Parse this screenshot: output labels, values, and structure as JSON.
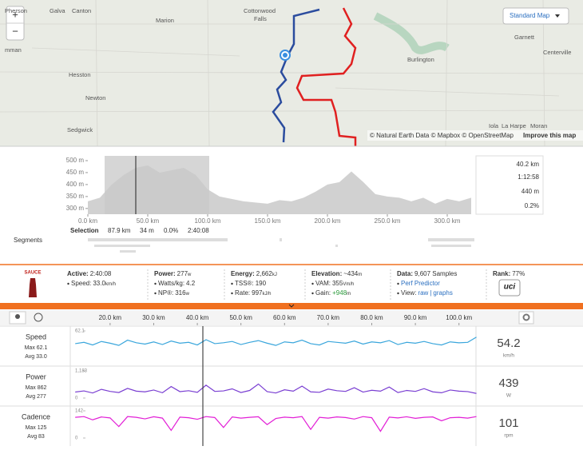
{
  "map": {
    "labels": [
      "Pherson",
      "Galva",
      "Canton",
      "Marion",
      "Cottonwood",
      "Falls",
      "mman",
      "Hesston",
      "Newton",
      "Sedgwick",
      "Garnett",
      "Burlington",
      "Centerville",
      "Iola",
      "La Harpe",
      "Moran"
    ],
    "zoom_in": "+",
    "zoom_out": "−",
    "style_button": "Standard Map",
    "attribution": "© Natural Earth Data © Mapbox © OpenStreetMap",
    "improve": "Improve this map"
  },
  "chart_data": [
    {
      "type": "area",
      "color": "#c9c9c9",
      "x": [
        0,
        10,
        20,
        30,
        40,
        50,
        60,
        70,
        80,
        90,
        100,
        110,
        120,
        130,
        140,
        150,
        160,
        170,
        180,
        190,
        200,
        210,
        220,
        230,
        240,
        250,
        260,
        270,
        280,
        290,
        300,
        310,
        320
      ],
      "values": [
        330,
        345,
        400,
        440,
        470,
        480,
        450,
        460,
        470,
        440,
        380,
        350,
        340,
        330,
        325,
        320,
        335,
        330,
        345,
        370,
        400,
        410,
        455,
        410,
        360,
        350,
        345,
        330,
        345,
        320,
        340,
        330,
        345
      ],
      "xlim": [
        0,
        322
      ],
      "ylim": [
        276,
        520
      ],
      "xticks": [
        {
          "value": 0,
          "label": "0.0 km"
        },
        {
          "value": 50,
          "label": "50.0 km"
        },
        {
          "value": 100,
          "label": "100.0 km"
        },
        {
          "value": 150,
          "label": "150.0 km"
        },
        {
          "value": 200,
          "label": "200.0 km"
        },
        {
          "value": 250,
          "label": "250.0 km"
        },
        {
          "value": 300,
          "label": "300.0 km"
        }
      ],
      "yticks": [
        {
          "value": 500,
          "label": "500 m"
        },
        {
          "value": 450,
          "label": "450 m"
        },
        {
          "value": 400,
          "label": "400 m"
        },
        {
          "value": 350,
          "label": "350 m"
        },
        {
          "value": 300,
          "label": "300 m"
        }
      ],
      "readout": [
        "40.2 km",
        "1:12:58",
        "440 m",
        "0.2%"
      ],
      "selection": [
        "Selection",
        "87.9 km",
        "34 m",
        "0.0%",
        "2:40:08"
      ],
      "segments_label": "Segments"
    },
    {
      "type": "line",
      "color": "#3aa6dc",
      "title": "Speed",
      "max_label": "Max 62.1",
      "avg_label": "Avg 33.0",
      "current": "54.2",
      "unit": "km/h",
      "x": [
        12,
        14,
        16,
        18,
        20,
        22,
        24,
        26,
        28,
        30,
        32,
        34,
        36,
        38,
        40,
        42,
        44,
        46,
        48,
        50,
        52,
        54,
        56,
        58,
        60,
        62,
        64,
        66,
        68,
        70,
        72,
        74,
        76,
        78,
        80,
        82,
        84,
        86,
        88,
        90,
        92,
        94,
        96,
        98,
        100,
        102,
        104
      ],
      "values": [
        33,
        36,
        30,
        38,
        34,
        29,
        41,
        35,
        32,
        37,
        31,
        39,
        34,
        36,
        30,
        42,
        33,
        35,
        38,
        31,
        36,
        40,
        34,
        29,
        37,
        35,
        41,
        33,
        30,
        38,
        36,
        34,
        39,
        32,
        37,
        35,
        40,
        31,
        36,
        34,
        38,
        33,
        30,
        37,
        35,
        36,
        48
      ],
      "xlim": [
        11.6,
        103.9
      ],
      "ylim": [
        0,
        62.1
      ],
      "yticks": [
        62.1
      ],
      "xticks": [
        {
          "value": 20,
          "label": "20.0 km"
        },
        {
          "value": 30,
          "label": "30.0 km"
        },
        {
          "value": 40,
          "label": "40.0 km"
        },
        {
          "value": 50,
          "label": "50.0 km"
        },
        {
          "value": 60,
          "label": "60.0 km"
        },
        {
          "value": 70,
          "label": "70.0 km"
        },
        {
          "value": 80,
          "label": "80.0 km"
        },
        {
          "value": 90,
          "label": "90.0 km"
        },
        {
          "value": 100,
          "label": "100.0 km"
        }
      ]
    },
    {
      "type": "line",
      "color": "#7a3fd2",
      "title": "Power",
      "max_label": "Max 862",
      "avg_label": "Avg 277",
      "current": "439",
      "unit": "W",
      "x": [
        12,
        14,
        16,
        18,
        20,
        22,
        24,
        26,
        28,
        30,
        32,
        34,
        36,
        38,
        40,
        42,
        44,
        46,
        48,
        50,
        52,
        54,
        56,
        58,
        60,
        62,
        64,
        66,
        68,
        70,
        72,
        74,
        76,
        78,
        80,
        82,
        84,
        86,
        88,
        90,
        92,
        94,
        96,
        98,
        100,
        102,
        104
      ],
      "values": [
        260,
        310,
        220,
        380,
        290,
        240,
        420,
        300,
        270,
        350,
        230,
        500,
        280,
        320,
        250,
        560,
        290,
        310,
        400,
        240,
        330,
        610,
        280,
        220,
        360,
        300,
        520,
        270,
        250,
        390,
        320,
        290,
        450,
        260,
        340,
        300,
        480,
        240,
        330,
        290,
        410,
        270,
        230,
        350,
        300,
        280,
        200
      ],
      "xlim": [
        11.6,
        103.9
      ],
      "ylim": [
        0,
        1183
      ],
      "yticks": [
        {
          "value": 1183,
          "label": "1,183"
        },
        0
      ]
    },
    {
      "type": "line",
      "color": "#e21fd6",
      "title": "Cadence",
      "max_label": "Max 125",
      "avg_label": "Avg 83",
      "current": "101",
      "unit": "rpm",
      "x": [
        12,
        14,
        16,
        18,
        20,
        22,
        24,
        26,
        28,
        30,
        32,
        34,
        36,
        38,
        40,
        42,
        44,
        46,
        48,
        50,
        52,
        54,
        56,
        58,
        60,
        62,
        64,
        66,
        68,
        70,
        72,
        74,
        76,
        78,
        80,
        82,
        84,
        86,
        88,
        90,
        92,
        94,
        96,
        98,
        100,
        102,
        104
      ],
      "values": [
        108,
        112,
        95,
        110,
        105,
        60,
        112,
        108,
        100,
        111,
        104,
        40,
        109,
        106,
        98,
        112,
        107,
        55,
        110,
        104,
        108,
        111,
        70,
        102,
        109,
        106,
        112,
        45,
        108,
        104,
        110,
        107,
        99,
        112,
        106,
        35,
        109,
        105,
        111,
        103,
        108,
        110,
        90,
        106,
        108,
        104,
        112
      ],
      "xlim": [
        11.6,
        103.9
      ],
      "ylim": [
        0,
        142
      ],
      "yticks": [
        142,
        0
      ]
    }
  ],
  "stats": {
    "logo": "SAUCE",
    "groups": [
      {
        "title": "Active:",
        "value": "2:40:08",
        "items": [
          {
            "label": "Speed:",
            "value": "33.0",
            "unit": "km/h"
          }
        ]
      },
      {
        "title": "Power:",
        "value": "277",
        "unit": "w",
        "items": [
          {
            "label": "Watts/kg:",
            "value": "4.2"
          },
          {
            "label": "NP®:",
            "value": "316",
            "unit": "w"
          }
        ]
      },
      {
        "title": "Energy:",
        "value": "2,662",
        "unit": "kJ",
        "items": [
          {
            "label": "TSS®:",
            "value": "190"
          },
          {
            "label": "Rate:",
            "value": "997",
            "unit": "kJ/h"
          }
        ]
      },
      {
        "title": "Elevation:",
        "value": "~434",
        "unit": "m",
        "items": [
          {
            "label": "VAM:",
            "value": "355",
            "unit": "Vm/h"
          },
          {
            "label": "Gain:",
            "value": "+948",
            "unit": "m",
            "color": "#2a9a3a"
          }
        ]
      },
      {
        "title": "Data:",
        "value": "9,607 Samples",
        "items": [
          {
            "label": "Perf Predictor",
            "color": "#2a6fc0"
          },
          {
            "label": "View:",
            "links": [
              "raw",
              "|",
              "graphs"
            ]
          }
        ]
      },
      {
        "title": "Rank:",
        "value": "77%",
        "badge": "uci"
      }
    ]
  }
}
